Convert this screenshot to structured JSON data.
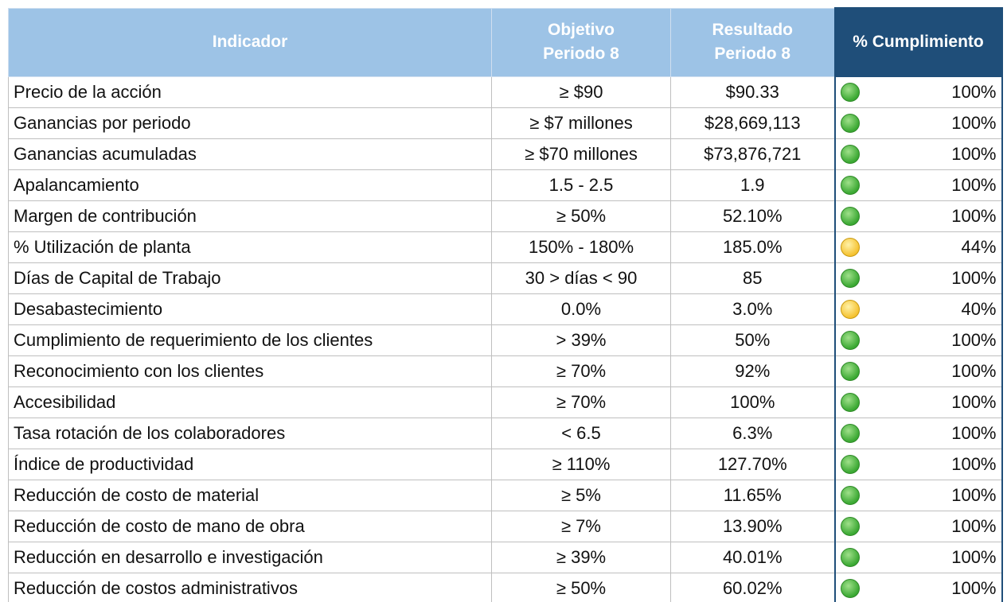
{
  "table": {
    "header": [
      "Indicador",
      "Objetivo\nPeriodo 8",
      "Resultado\nPeriodo 8",
      "% Cumplimiento"
    ],
    "rows": [
      {
        "cells": [
          "Precio de la acción",
          "≥ $90",
          "$90.33",
          "100%"
        ],
        "status": "green"
      },
      {
        "cells": [
          "Ganancias por periodo",
          "≥ $7 millones",
          "$28,669,113",
          "100%"
        ],
        "status": "green"
      },
      {
        "cells": [
          "Ganancias acumuladas",
          "≥ $70 millones",
          "$73,876,721",
          "100%"
        ],
        "status": "green"
      },
      {
        "cells": [
          "Apalancamiento",
          "1.5 - 2.5",
          "1.9",
          "100%"
        ],
        "status": "green"
      },
      {
        "cells": [
          "Margen de contribución",
          "≥ 50%",
          "52.10%",
          "100%"
        ],
        "status": "green"
      },
      {
        "cells": [
          "% Utilización de planta",
          "150% - 180%",
          "185.0%",
          "44%"
        ],
        "status": "yellow"
      },
      {
        "cells": [
          "Días de Capital de Trabajo",
          "30 > días < 90",
          "85",
          "100%"
        ],
        "status": "green"
      },
      {
        "cells": [
          "Desabastecimiento",
          "0.0%",
          "3.0%",
          "40%"
        ],
        "status": "yellow"
      },
      {
        "cells": [
          "Cumplimiento de requerimiento de los clientes",
          "> 39%",
          "50%",
          "100%"
        ],
        "status": "green"
      },
      {
        "cells": [
          "Reconocimiento con los clientes",
          "≥ 70%",
          "92%",
          "100%"
        ],
        "status": "green"
      },
      {
        "cells": [
          "Accesibilidad",
          "≥ 70%",
          "100%",
          "100%"
        ],
        "status": "green"
      },
      {
        "cells": [
          "Tasa rotación de los colaboradores",
          "< 6.5",
          "6.3%",
          "100%"
        ],
        "status": "green"
      },
      {
        "cells": [
          "Índice de productividad",
          "≥ 110%",
          "127.70%",
          "100%"
        ],
        "status": "green"
      },
      {
        "cells": [
          "Reducción de costo de material",
          "≥ 5%",
          "11.65%",
          "100%"
        ],
        "status": "green"
      },
      {
        "cells": [
          "Reducción de costo de mano de obra",
          "≥ 7%",
          "13.90%",
          "100%"
        ],
        "status": "green"
      },
      {
        "cells": [
          "Reducción en desarrollo e investigación",
          "≥ 39%",
          "40.01%",
          "100%"
        ],
        "status": "green"
      },
      {
        "cells": [
          "Reducción de costos administrativos",
          "≥ 50%",
          "60.02%",
          "100%"
        ],
        "status": "green"
      }
    ]
  }
}
